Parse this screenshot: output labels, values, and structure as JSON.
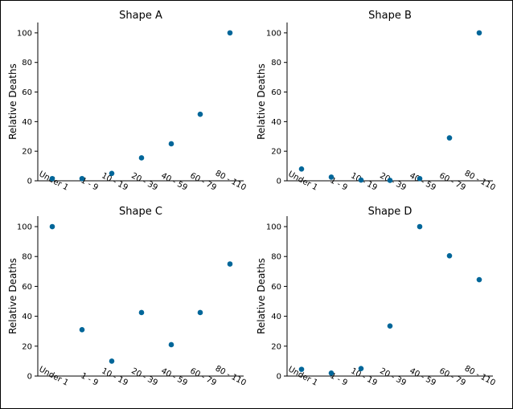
{
  "chart_data": [
    {
      "type": "scatter",
      "title": "Shape A",
      "xlabel": "",
      "ylabel": "Relative Deaths",
      "categories": [
        "Under 1",
        "1 - 9",
        "10 - 19",
        "20 - 39",
        "40 - 59",
        "60 - 79",
        "80 - 110"
      ],
      "values": [
        1.5,
        1.5,
        5,
        15.5,
        25,
        45,
        100
      ],
      "yticks": [
        0,
        20,
        40,
        60,
        80,
        100
      ],
      "ylim": [
        0,
        107
      ],
      "grid": false,
      "color": "#006699"
    },
    {
      "type": "scatter",
      "title": "Shape B",
      "xlabel": "",
      "ylabel": "Relative Deaths",
      "categories": [
        "Under 1",
        "1 - 9",
        "10 - 19",
        "20 - 39",
        "40 - 59",
        "60 - 79",
        "80 - 110"
      ],
      "values": [
        8,
        2.5,
        0.5,
        0.3,
        1.5,
        29,
        100
      ],
      "yticks": [
        0,
        20,
        40,
        60,
        80,
        100
      ],
      "ylim": [
        0,
        107
      ],
      "grid": false,
      "color": "#006699"
    },
    {
      "type": "scatter",
      "title": "Shape C",
      "xlabel": "",
      "ylabel": "Relative Deaths",
      "categories": [
        "Under 1",
        "1 - 9",
        "10 - 19",
        "20 - 39",
        "40 - 59",
        "60 - 79",
        "80 - 110"
      ],
      "values": [
        100,
        31,
        10,
        42.5,
        21,
        42.5,
        75
      ],
      "yticks": [
        0,
        20,
        40,
        60,
        80,
        100
      ],
      "ylim": [
        0,
        107
      ],
      "grid": false,
      "color": "#006699"
    },
    {
      "type": "scatter",
      "title": "Shape D",
      "xlabel": "",
      "ylabel": "Relative Deaths",
      "categories": [
        "Under 1",
        "1 - 9",
        "10 - 19",
        "20 - 39",
        "40 - 59",
        "60 - 79",
        "80 - 110"
      ],
      "values": [
        4.5,
        2,
        5,
        33.5,
        100,
        80.5,
        64.5
      ],
      "yticks": [
        0,
        20,
        40,
        60,
        80,
        100
      ],
      "ylim": [
        0,
        107
      ],
      "grid": false,
      "color": "#006699"
    }
  ]
}
